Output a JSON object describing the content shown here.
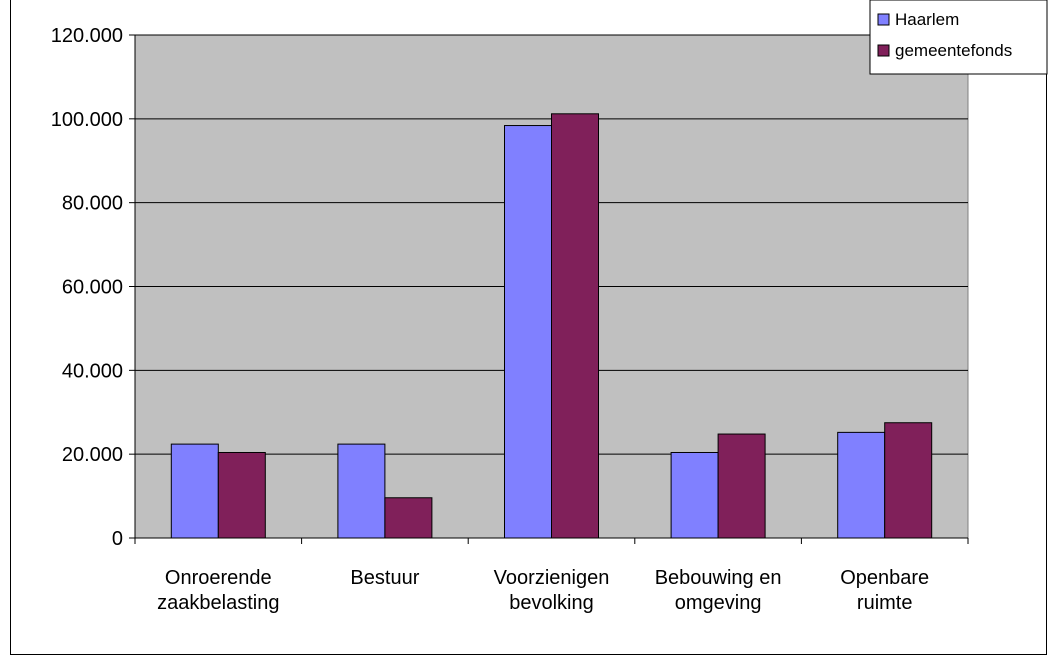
{
  "chart_data": {
    "type": "bar",
    "title": "",
    "xlabel": "",
    "ylabel": "",
    "categories": [
      [
        "Onroerende",
        "zaakbelasting"
      ],
      [
        "Bestuur"
      ],
      [
        "Voorzienigen",
        "bevolking"
      ],
      [
        "Bebouwing en",
        "omgeving"
      ],
      [
        "Openbare",
        "ruimte"
      ]
    ],
    "series": [
      {
        "name": "Haarlem",
        "color": "#8080ff",
        "values": [
          22400,
          22400,
          98400,
          20400,
          25200
        ]
      },
      {
        "name": "gemeentefonds",
        "color": "#80205a",
        "values": [
          20400,
          9600,
          101200,
          24800,
          27500
        ]
      }
    ],
    "ylim": [
      0,
      120000
    ],
    "yticks": [
      0,
      20000,
      40000,
      60000,
      80000,
      100000,
      120000
    ],
    "ytick_labels": [
      "0",
      "20.000",
      "40.000",
      "60.000",
      "80.000",
      "100.000",
      "120.000"
    ],
    "grid": true,
    "plot_background": "#c0c0c0",
    "legend": {
      "position": "top-right",
      "entries": [
        "Haarlem",
        "gemeentefonds"
      ]
    }
  }
}
